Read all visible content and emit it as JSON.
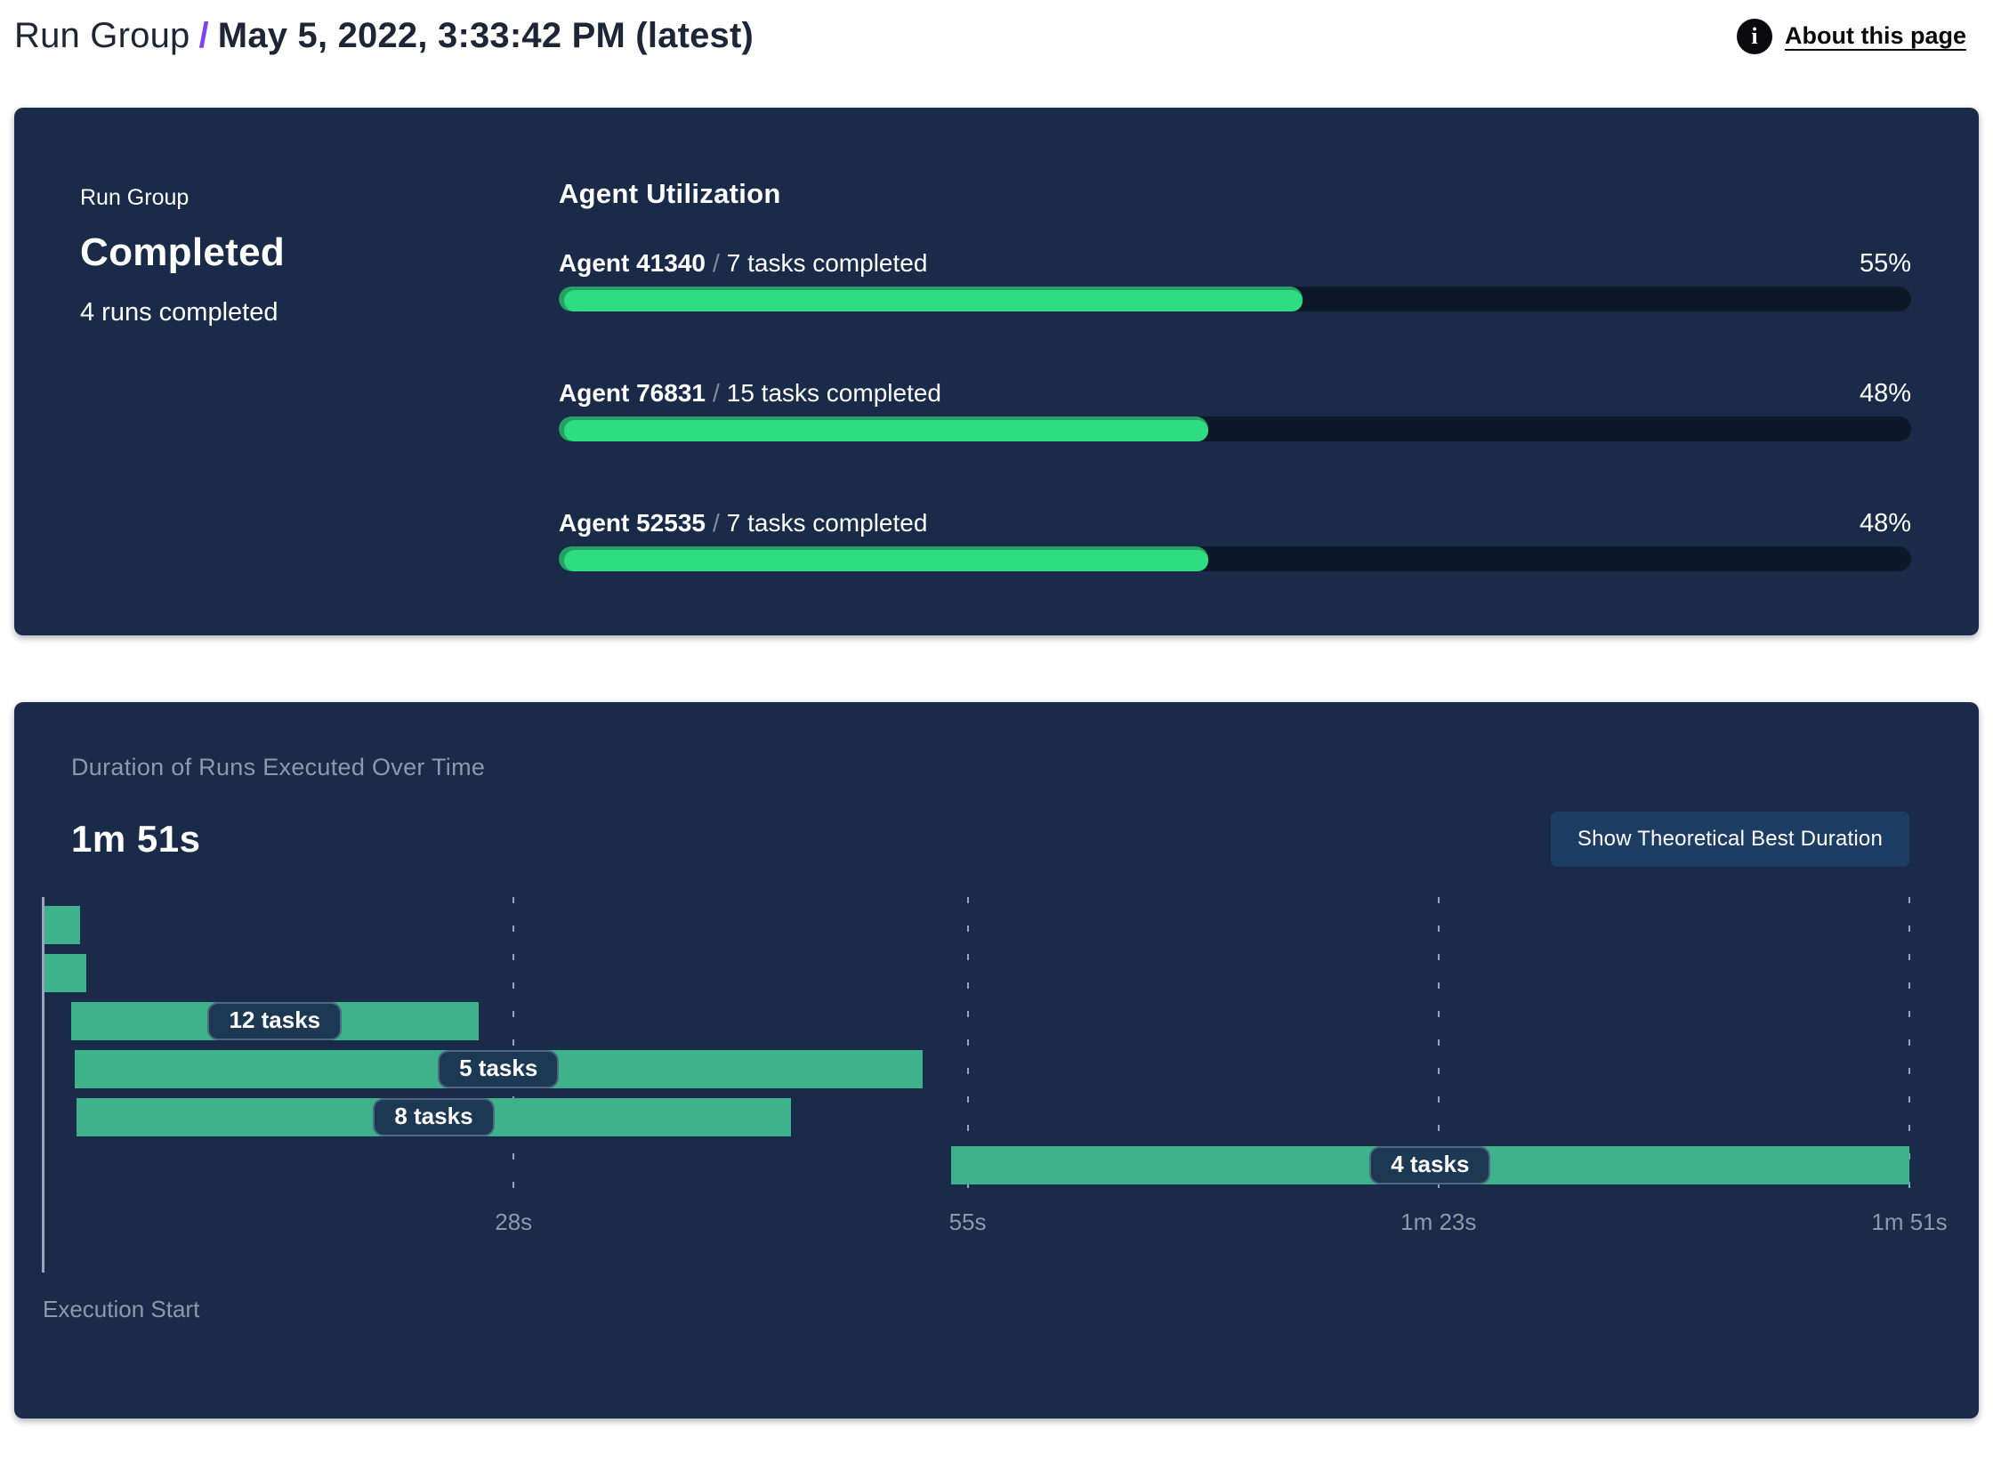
{
  "header": {
    "breadcrumb": "Run Group",
    "separator": "/",
    "title": "May 5, 2022, 3:33:42 PM (latest)",
    "about_label": "About this page",
    "info_icon_glyph": "i"
  },
  "summary": {
    "label": "Run Group",
    "status": "Completed",
    "detail": "4 runs completed"
  },
  "utilization": {
    "title": "Agent Utilization",
    "separator": "/",
    "agents": [
      {
        "name": "Agent 41340",
        "tasks": "7 tasks completed",
        "percent": 55,
        "percent_label": "55%"
      },
      {
        "name": "Agent 76831",
        "tasks": "15 tasks completed",
        "percent": 48,
        "percent_label": "48%"
      },
      {
        "name": "Agent 52535",
        "tasks": "7 tasks completed",
        "percent": 48,
        "percent_label": "48%"
      }
    ]
  },
  "duration_panel": {
    "subtitle": "Duration of Runs Executed Over Time",
    "total_duration": "1m 51s",
    "button_label": "Show Theoretical Best Duration",
    "execution_start_label": "Execution Start"
  },
  "chart_data": {
    "type": "bar",
    "subtype": "gantt-timeline",
    "title": "Duration of Runs Executed Over Time",
    "total_duration_label": "1m 51s",
    "x_unit": "seconds",
    "x_range": [
      0,
      111
    ],
    "grid": "dotted-vertical",
    "ticks": [
      {
        "seconds": 28,
        "label": "28s"
      },
      {
        "seconds": 55,
        "label": "55s"
      },
      {
        "seconds": 83,
        "label": "1m 23s"
      },
      {
        "seconds": 111,
        "label": "1m 51s"
      }
    ],
    "runs": [
      {
        "row": 1,
        "start_s": 0.1,
        "end_s": 2.2,
        "tasks": null,
        "label": ""
      },
      {
        "row": 2,
        "start_s": 0.1,
        "end_s": 2.6,
        "tasks": null,
        "label": ""
      },
      {
        "row": 3,
        "start_s": 1.7,
        "end_s": 25.9,
        "tasks": 12,
        "label": "12 tasks"
      },
      {
        "row": 4,
        "start_s": 1.9,
        "end_s": 52.3,
        "tasks": 5,
        "label": "5 tasks"
      },
      {
        "row": 5,
        "start_s": 2.0,
        "end_s": 44.5,
        "tasks": 8,
        "label": "8 tasks"
      },
      {
        "row": 6,
        "start_s": 54.0,
        "end_s": 111.0,
        "tasks": 4,
        "label": "4 tasks"
      }
    ],
    "axis_origin_label": "Execution Start"
  },
  "colors": {
    "card_navy": "#1a2b4a",
    "progress_green": "#2edc82",
    "progress_green_rim": "#27a065",
    "progress_track": "#0d1929",
    "gantt_green": "#3eb28b",
    "pill_navy": "#1c3852",
    "button_navy": "#1e3d63",
    "muted_text": "#8d99ab",
    "breadcrumb_purple": "#7b46f2",
    "page_background": "#ffffff"
  }
}
